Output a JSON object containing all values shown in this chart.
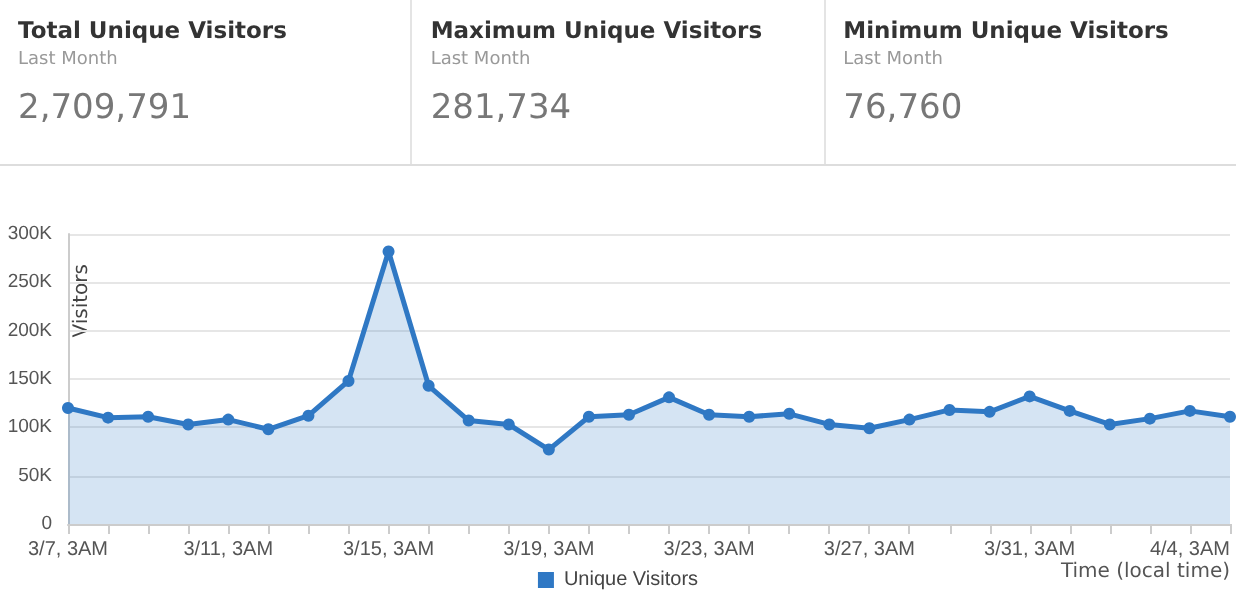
{
  "chart_data": [
    {
      "type": "other",
      "title": "Total Unique Visitors",
      "subtitle": "Last Month",
      "annotations": [
        "2,709,791"
      ]
    },
    {
      "type": "other",
      "title": "Maximum Unique Visitors",
      "subtitle": "Last Month",
      "annotations": [
        "281,734"
      ]
    },
    {
      "type": "other",
      "title": "Minimum Unique Visitors",
      "subtitle": "Last Month",
      "annotations": [
        "76,760"
      ]
    },
    {
      "type": "area",
      "xlabel": "Time (local time)",
      "ylabel": "Visitors",
      "categories": [
        "3/7, 3AM",
        null,
        null,
        null,
        "3/11, 3AM",
        null,
        null,
        null,
        "3/15, 3AM",
        null,
        null,
        null,
        "3/19, 3AM",
        null,
        null,
        null,
        "3/23, 3AM",
        null,
        null,
        null,
        "3/27, 3AM",
        null,
        null,
        null,
        "3/31, 3AM",
        null,
        null,
        null,
        "4/4, 3AM",
        null
      ],
      "series": [
        {
          "name": "Unique Visitors",
          "color": "#2f78c4",
          "values": [
            120000,
            110000,
            111000,
            103000,
            108000,
            98000,
            112000,
            148000,
            282000,
            143000,
            107000,
            103000,
            77000,
            111000,
            113000,
            131000,
            113000,
            111000,
            114000,
            103000,
            99000,
            108000,
            118000,
            116000,
            132000,
            117000,
            103000,
            109000,
            117000,
            111000
          ]
        }
      ],
      "ylim": [
        0,
        300000
      ],
      "yticks": [
        {
          "value": 0,
          "label": "0"
        },
        {
          "value": 50000,
          "label": "50K"
        },
        {
          "value": 100000,
          "label": "100K"
        },
        {
          "value": 150000,
          "label": "150K"
        },
        {
          "value": 200000,
          "label": "200K"
        },
        {
          "value": 250000,
          "label": "250K"
        },
        {
          "value": 300000,
          "label": "300K"
        }
      ],
      "grid": "y",
      "legend": "bottom",
      "marker": "circle",
      "line_style": "solid"
    }
  ]
}
